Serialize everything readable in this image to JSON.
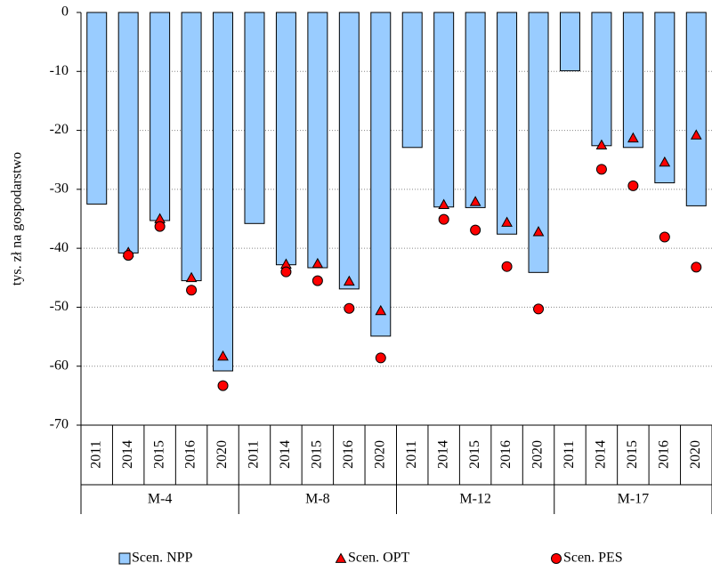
{
  "chart_data": {
    "type": "bar",
    "y_label": "tys. zł na gospodarstwo",
    "categories": [
      "2011",
      "2014",
      "2015",
      "2016",
      "2020",
      "2011",
      "2014",
      "2015",
      "2016",
      "2020",
      "2011",
      "2014",
      "2015",
      "2016",
      "2020",
      "2011",
      "2014",
      "2015",
      "2016",
      "2020"
    ],
    "groups": [
      "M-4",
      "M-8",
      "M-12",
      "M-17"
    ],
    "series": [
      {
        "name": "Scen. NPP",
        "kind": "bar",
        "color": "#99ccff",
        "values": [
          -32.5,
          -40.8,
          -35.3,
          -45.5,
          -60.8,
          -35.8,
          -42.8,
          -43.3,
          -46.9,
          -54.9,
          -22.9,
          -33.0,
          -33.1,
          -37.6,
          -44.1,
          -9.9,
          -22.6,
          -22.9,
          -28.9,
          -32.8
        ]
      },
      {
        "name": "Scen. OPT",
        "kind": "triangle",
        "color": "#ff0000",
        "values": [
          null,
          -40.7,
          -35.0,
          -45.0,
          -58.3,
          null,
          -42.7,
          -42.6,
          -45.6,
          -50.6,
          null,
          -32.6,
          -32.1,
          -35.6,
          -37.2,
          null,
          -22.5,
          -21.3,
          -25.4,
          -20.8
        ]
      },
      {
        "name": "Scen. PES",
        "kind": "circle",
        "color": "#ff0000",
        "values": [
          null,
          -41.2,
          -36.3,
          -47.1,
          -63.3,
          null,
          -44.0,
          -45.5,
          -50.2,
          -58.6,
          null,
          -35.1,
          -36.9,
          -43.1,
          -50.3,
          null,
          -26.6,
          -29.4,
          -38.1,
          -43.2
        ]
      }
    ],
    "ylim": [
      -70,
      0
    ],
    "yticks": [
      0,
      -10,
      -20,
      -30,
      -40,
      -50,
      -60,
      -70
    ],
    "grid": true,
    "legend": "bottom"
  }
}
